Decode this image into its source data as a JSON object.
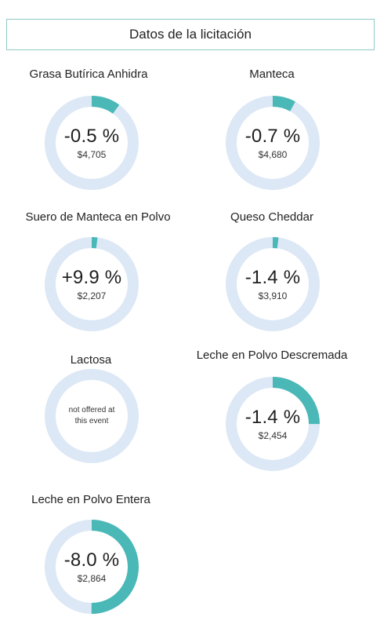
{
  "header": {
    "title": "Datos de la licitación"
  },
  "colors": {
    "track": "#dce8f5",
    "arc": "#4ab8b7",
    "border": "#8fc9c6"
  },
  "products": [
    {
      "name": "Grasa Butírica Anhidra",
      "change": "-0.5 %",
      "price": "$4,705",
      "arc_fraction": 0.1,
      "offered": true
    },
    {
      "name": "Manteca",
      "change": "-0.7 %",
      "price": "$4,680",
      "arc_fraction": 0.08,
      "offered": true
    },
    {
      "name": "Suero de Manteca en Polvo",
      "change": "+9.9 %",
      "price": "$2,207",
      "arc_fraction": 0.02,
      "offered": true
    },
    {
      "name": "Queso Cheddar",
      "change": "-1.4 %",
      "price": "$3,910",
      "arc_fraction": 0.02,
      "offered": true
    },
    {
      "name": "Lactosa",
      "note": "not offered at this event",
      "arc_fraction": 0,
      "offered": false
    },
    {
      "name": "Leche en Polvo Descremada",
      "change": "-1.4 %",
      "price": "$2,454",
      "arc_fraction": 0.25,
      "offered": true
    },
    {
      "name": "Leche en Polvo Entera",
      "change": "-8.0 %",
      "price": "$2,864",
      "arc_fraction": 0.5,
      "offered": true
    }
  ]
}
